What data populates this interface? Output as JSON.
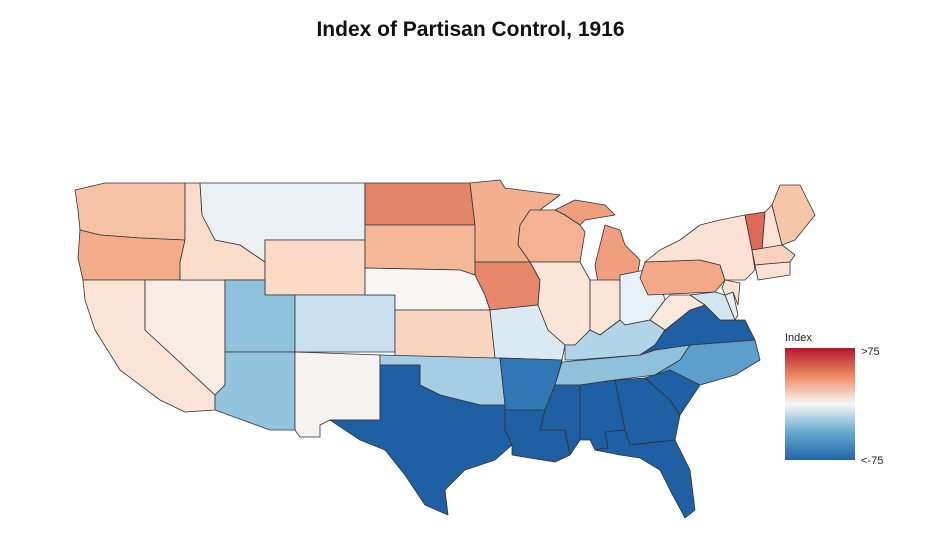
{
  "title": "Index of Partisan Control, 1916",
  "legend": {
    "title": "Index",
    "max_label": ">75",
    "min_label": "<-75",
    "colors": [
      "#b2182b",
      "#ef8a62",
      "#f7f7f7",
      "#67a9cf",
      "#2166ac"
    ]
  },
  "states": {
    "WA": "#f5c2a5",
    "OR": "#f3ac8a",
    "CA": "#fbe3d6",
    "NV": "#f8ece6",
    "ID": "#fadccb",
    "MT": "#e9f1f5",
    "WY": "#fadbc8",
    "UT": "#8fc2dd",
    "CO": "#c9e1ee",
    "AZ": "#93c4de",
    "NM": "#f5f2ef",
    "ND": "#e38569",
    "SD": "#f4b797",
    "NE": "#f7f6f4",
    "KS": "#f9d5c0",
    "OK": "#a5cde3",
    "TX": "#1f5fa4",
    "MN": "#f3b08f",
    "IA": "#e6866a",
    "MO": "#dbeaf2",
    "AR": "#2f78b5",
    "LA": "#1f5fa4",
    "WI": "#f4b193",
    "MI": "#ef9e7e",
    "MI2": "#ef9e7e",
    "IL": "#fbe5d9",
    "IN": "#fbe3d5",
    "OH": "#e6f0f6",
    "KY": "#b2d4e8",
    "TN": "#8fc1dd",
    "MS": "#1f5fa4",
    "AL": "#1f5fa4",
    "GA": "#1f5fa4",
    "FL": "#1f5fa4",
    "SC": "#1f5fa4",
    "NC": "#5c9fcc",
    "VA": "#1f5fa4",
    "WV": "#fde8dc",
    "PA": "#f3a887",
    "NY": "#fbe2d4",
    "MD": "#d2e5f0",
    "DE": "#e6eff5",
    "NJ": "#fbe2d4",
    "VT": "#dd6a55",
    "NH": "#fbe3d6",
    "ME": "#f7c6aa",
    "MA": "#f9d2bd",
    "CT": "#fbe2d4"
  }
}
